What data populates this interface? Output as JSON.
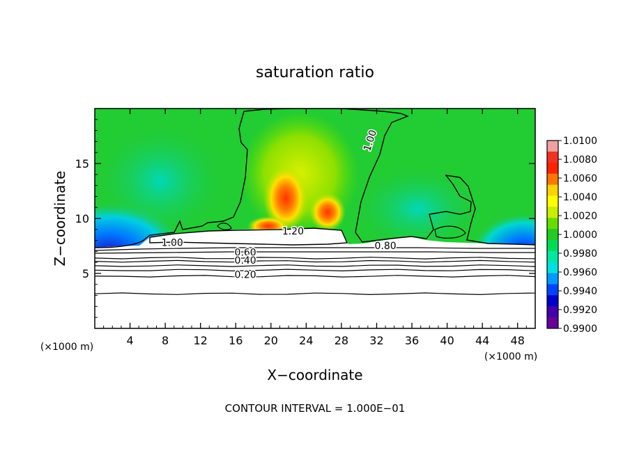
{
  "chart_data": {
    "type": "heatmap",
    "title": "saturation ratio",
    "xlabel": "X−coordinate",
    "ylabel": "Z−coordinate",
    "x_unit_left": "(×1000 m)",
    "x_unit_right": "(×1000 m)",
    "footer": "CONTOUR INTERVAL = 1.000E−01",
    "xlim": [
      0,
      50
    ],
    "ylim": [
      0,
      20
    ],
    "x_ticks": [
      4,
      8,
      12,
      16,
      20,
      24,
      28,
      32,
      36,
      40,
      44,
      48
    ],
    "y_ticks": [
      5,
      10,
      15
    ],
    "colorbar": {
      "min": 0.99,
      "max": 1.01,
      "labels": [
        "1.0100",
        "1.0080",
        "1.0060",
        "1.0040",
        "1.0020",
        "1.0000",
        "0.9980",
        "0.9960",
        "0.9940",
        "0.9920",
        "0.9900"
      ],
      "colors": [
        "#f0a0a0",
        "#ee3322",
        "#ff2200",
        "#ff7700",
        "#ffd200",
        "#ffff00",
        "#c8ee00",
        "#66dd00",
        "#22cc22",
        "#00dd55",
        "#00e8a0",
        "#00e0e0",
        "#0099ff",
        "#0044ff",
        "#0000cc",
        "#4400aa",
        "#660099"
      ]
    },
    "contour_labels": [
      {
        "text": "1.00",
        "x": 31.6,
        "y": 17.0,
        "angle": -72
      },
      {
        "text": "1.20",
        "x": 22.5,
        "y": 8.55
      },
      {
        "text": "1.00",
        "x": 8.8,
        "y": 7.5
      },
      {
        "text": "0.80",
        "x": 33.0,
        "y": 7.2
      },
      {
        "text": "0.60",
        "x": 17.1,
        "y": 6.6
      },
      {
        "text": "0.40",
        "x": 17.1,
        "y": 5.9
      },
      {
        "text": "0.20",
        "x": 17.1,
        "y": 4.6
      }
    ],
    "contour_levels": [
      {
        "level": 0.6,
        "z": 6.4
      },
      {
        "level": 0.5,
        "z": 6.1
      },
      {
        "level": 0.4,
        "z": 5.7
      },
      {
        "level": 0.3,
        "z": 5.3
      },
      {
        "level": 0.2,
        "z": 4.75
      },
      {
        "level": 0.1,
        "z": 3.15
      }
    ],
    "legend": "right",
    "grid": false
  }
}
